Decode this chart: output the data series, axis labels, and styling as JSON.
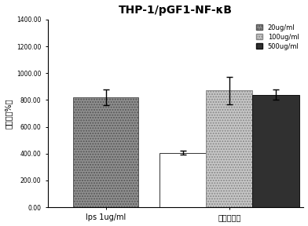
{
  "title": "THP-1/pGF1-NF-κB",
  "ylabel": "激活率（%）",
  "groups": [
    "lps 1ug/ml",
    "肉苁蓉多糖"
  ],
  "legend_labels": [
    "20ug/ml",
    "100ug/ml",
    "500ug/ml"
  ],
  "lps_value": 820,
  "lps_error": 60,
  "cistanche_values": [
    405,
    870,
    840
  ],
  "cistanche_errors": [
    15,
    100,
    40
  ],
  "ylim": [
    0,
    1400
  ],
  "yticks": [
    0,
    200,
    400,
    600,
    800,
    1000,
    1200,
    1400
  ],
  "ytick_labels": [
    "0.00",
    "200.00",
    "400.00",
    "600.00",
    "800.00",
    "1000.00",
    "1200.00",
    "1400.00"
  ],
  "background_color": "#ffffff",
  "lps_bar_color": "#909090",
  "lps_bar_hatch": ".....",
  "cist_bar_colors": [
    "#ffffff",
    "#c8c8c8",
    "#303030"
  ],
  "cist_bar_hatches": [
    "",
    ".....",
    ""
  ],
  "cist_bar_edgecolors": [
    "#333333",
    "#888888",
    "#111111"
  ]
}
